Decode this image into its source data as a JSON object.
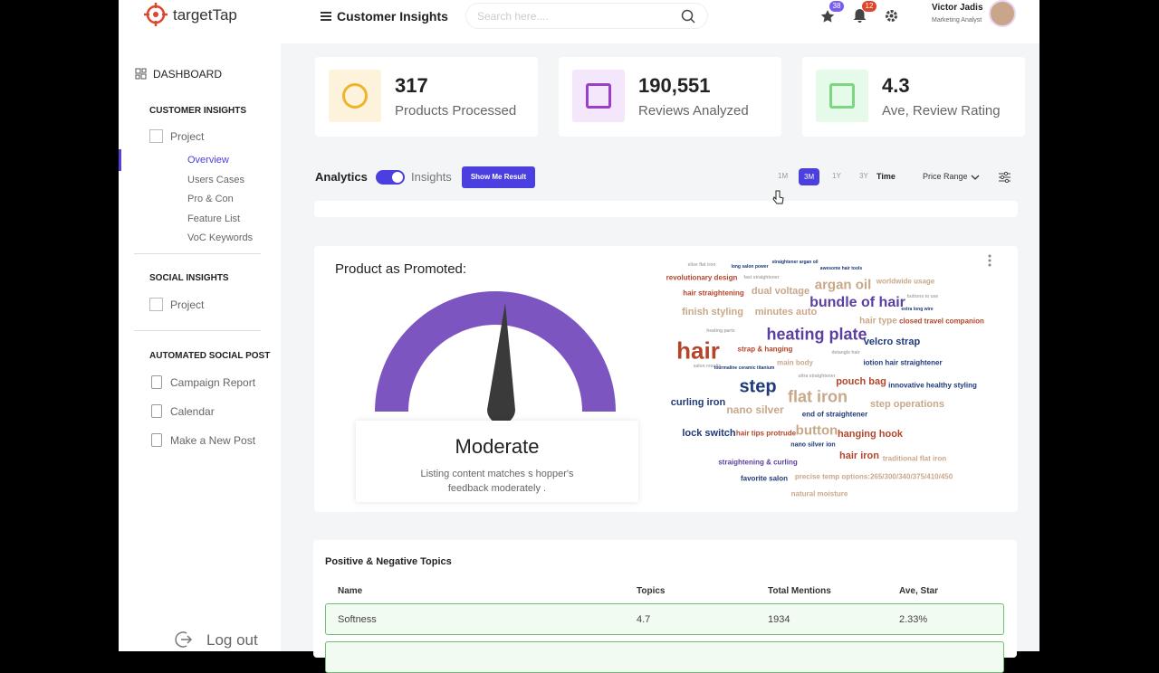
{
  "sidebar": {
    "logo": "targetTap",
    "dashboard": "DASHBOARD",
    "customer_insights": {
      "title": "CUSTOMER INSIGHTS",
      "project": "Project",
      "items": [
        "Overview",
        "Users Cases",
        "Pro & Con",
        "Feature List",
        "VoC Keywords"
      ]
    },
    "social_insights": {
      "title": "SOCIAL INSIGHTS",
      "project": "Project"
    },
    "automated": {
      "title": "AUTOMATED SOCIAL POST",
      "items": [
        "Campaign Report",
        "Calendar",
        "Make a New Post"
      ]
    },
    "logout": "Log out"
  },
  "header": {
    "title": "Customer Insights",
    "search_placeholder": "Search here....",
    "star_badge": "38",
    "bell_badge": "12",
    "user_name": "Victor Jadis",
    "user_role": "Marketing Analyst"
  },
  "stats": [
    {
      "value": "317",
      "label": "Products Processed"
    },
    {
      "value": "190,551",
      "label": "Reviews Analyzed"
    },
    {
      "value": "4.3",
      "label": "Ave, Review Rating"
    }
  ],
  "toolbar": {
    "analytics": "Analytics",
    "insights": "Insights",
    "button": "Show Me Result",
    "ranges": [
      "1M",
      "3M",
      "1Y",
      "3Y"
    ],
    "time": "Time",
    "price_range": "Price Range"
  },
  "promoted": {
    "title": "Product as Promoted:",
    "status": "Moderate",
    "description": "Listing content matches s hopper's feedback moderately ."
  },
  "word_cloud": {
    "words": [
      "elise flat iron",
      "long salon power",
      "straightener argan oil",
      "awesome hair tools",
      "revolutionary design",
      "fast straightener",
      "argan oil",
      "worldwide usage",
      "hair straightening",
      "dual voltage",
      "bundle of hair",
      "buttons to use",
      "extra long wire",
      "finish styling",
      "minutes auto",
      "hair type",
      "closed travel companion",
      "heating parts",
      "heating plate",
      "hair",
      "strap & hanging",
      "velcro strap",
      "detangle hair",
      "salon results",
      "tourmaline ceramic titanium",
      "main body",
      "iotion hair straightener",
      "ultra straightener",
      "step",
      "flat iron",
      "pouch bag",
      "innovative healthy styling",
      "curling iron",
      "nano silver",
      "step operations",
      "end of straightener",
      "lock switch",
      "hair tips protrude",
      "button",
      "hanging hook",
      "nano silver ion",
      "hair iron",
      "traditional flat iron",
      "straightening & curling",
      "favorite salon",
      "precise temp options:265/300/340/375/410/450",
      "natural moisture"
    ]
  },
  "topics": {
    "title": "Positive & Negative Topics",
    "columns": [
      "Name",
      "Topics",
      "Total Mentions",
      "Ave, Star"
    ],
    "rows": [
      [
        "Softness",
        "4.7",
        "1934",
        "2.33%"
      ]
    ]
  }
}
